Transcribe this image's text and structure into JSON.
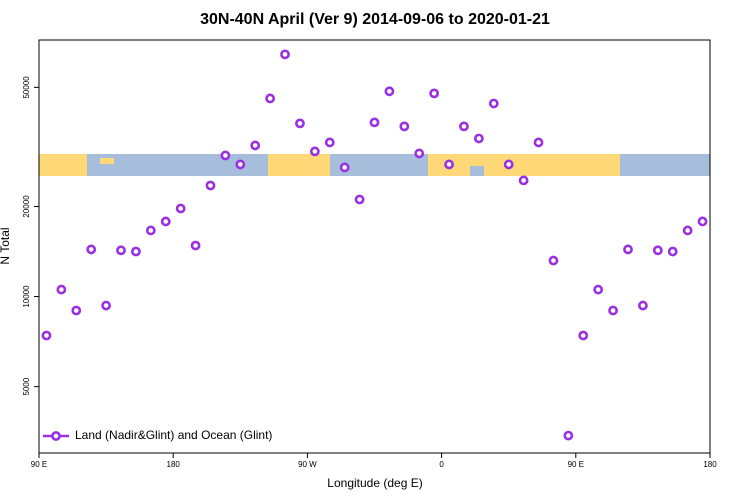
{
  "chart_data": {
    "type": "scatter",
    "title": "30N-40N April (Ver 9)   2014-09-06 to 2020-01-21",
    "x_label": "Longitude (deg E)",
    "y_label": "N Total",
    "log_y": true,
    "legend": "bottom-left",
    "xlim": [
      90,
      540
    ],
    "xticks": [
      {
        "value": 90,
        "label": "90 E"
      },
      180,
      {
        "value": 270,
        "label": "90 W"
      },
      {
        "value": 360,
        "label": "0"
      },
      {
        "value": 450,
        "label": "90 E"
      },
      {
        "value": 540,
        "label": "180"
      }
    ],
    "ylim": [
      3000,
      72000
    ],
    "yticks": [
      5000,
      10000,
      20000,
      50000
    ],
    "series": [
      {
        "name": "Land (Nadir&Glint) and Ocean (Glint)",
        "color": "#9b30e0",
        "x": [
          95,
          105,
          115,
          125,
          135,
          145,
          155,
          165,
          175,
          185,
          195,
          205,
          215,
          225,
          235,
          245,
          255,
          265,
          275,
          285,
          295,
          305,
          315,
          325,
          335,
          345,
          355,
          365,
          375,
          385,
          395,
          405,
          415,
          425,
          435,
          445,
          455,
          465,
          475,
          485,
          495,
          505,
          515,
          525,
          535
        ],
        "values": [
          7410,
          10550,
          8980,
          14370,
          9330,
          14270,
          14140,
          16630,
          17820,
          19690,
          14810,
          23500,
          29620,
          27640,
          31990,
          45920,
          64470,
          37900,
          30550,
          32730,
          27000,
          21100,
          38200,
          48510,
          37040,
          30080,
          47750,
          27640,
          37040,
          33750,
          44180,
          27640,
          24440,
          32730,
          13190,
          3430,
          7410,
          10550,
          8980,
          14370,
          9330,
          14270,
          14140,
          16630,
          17820
        ]
      }
    ]
  }
}
